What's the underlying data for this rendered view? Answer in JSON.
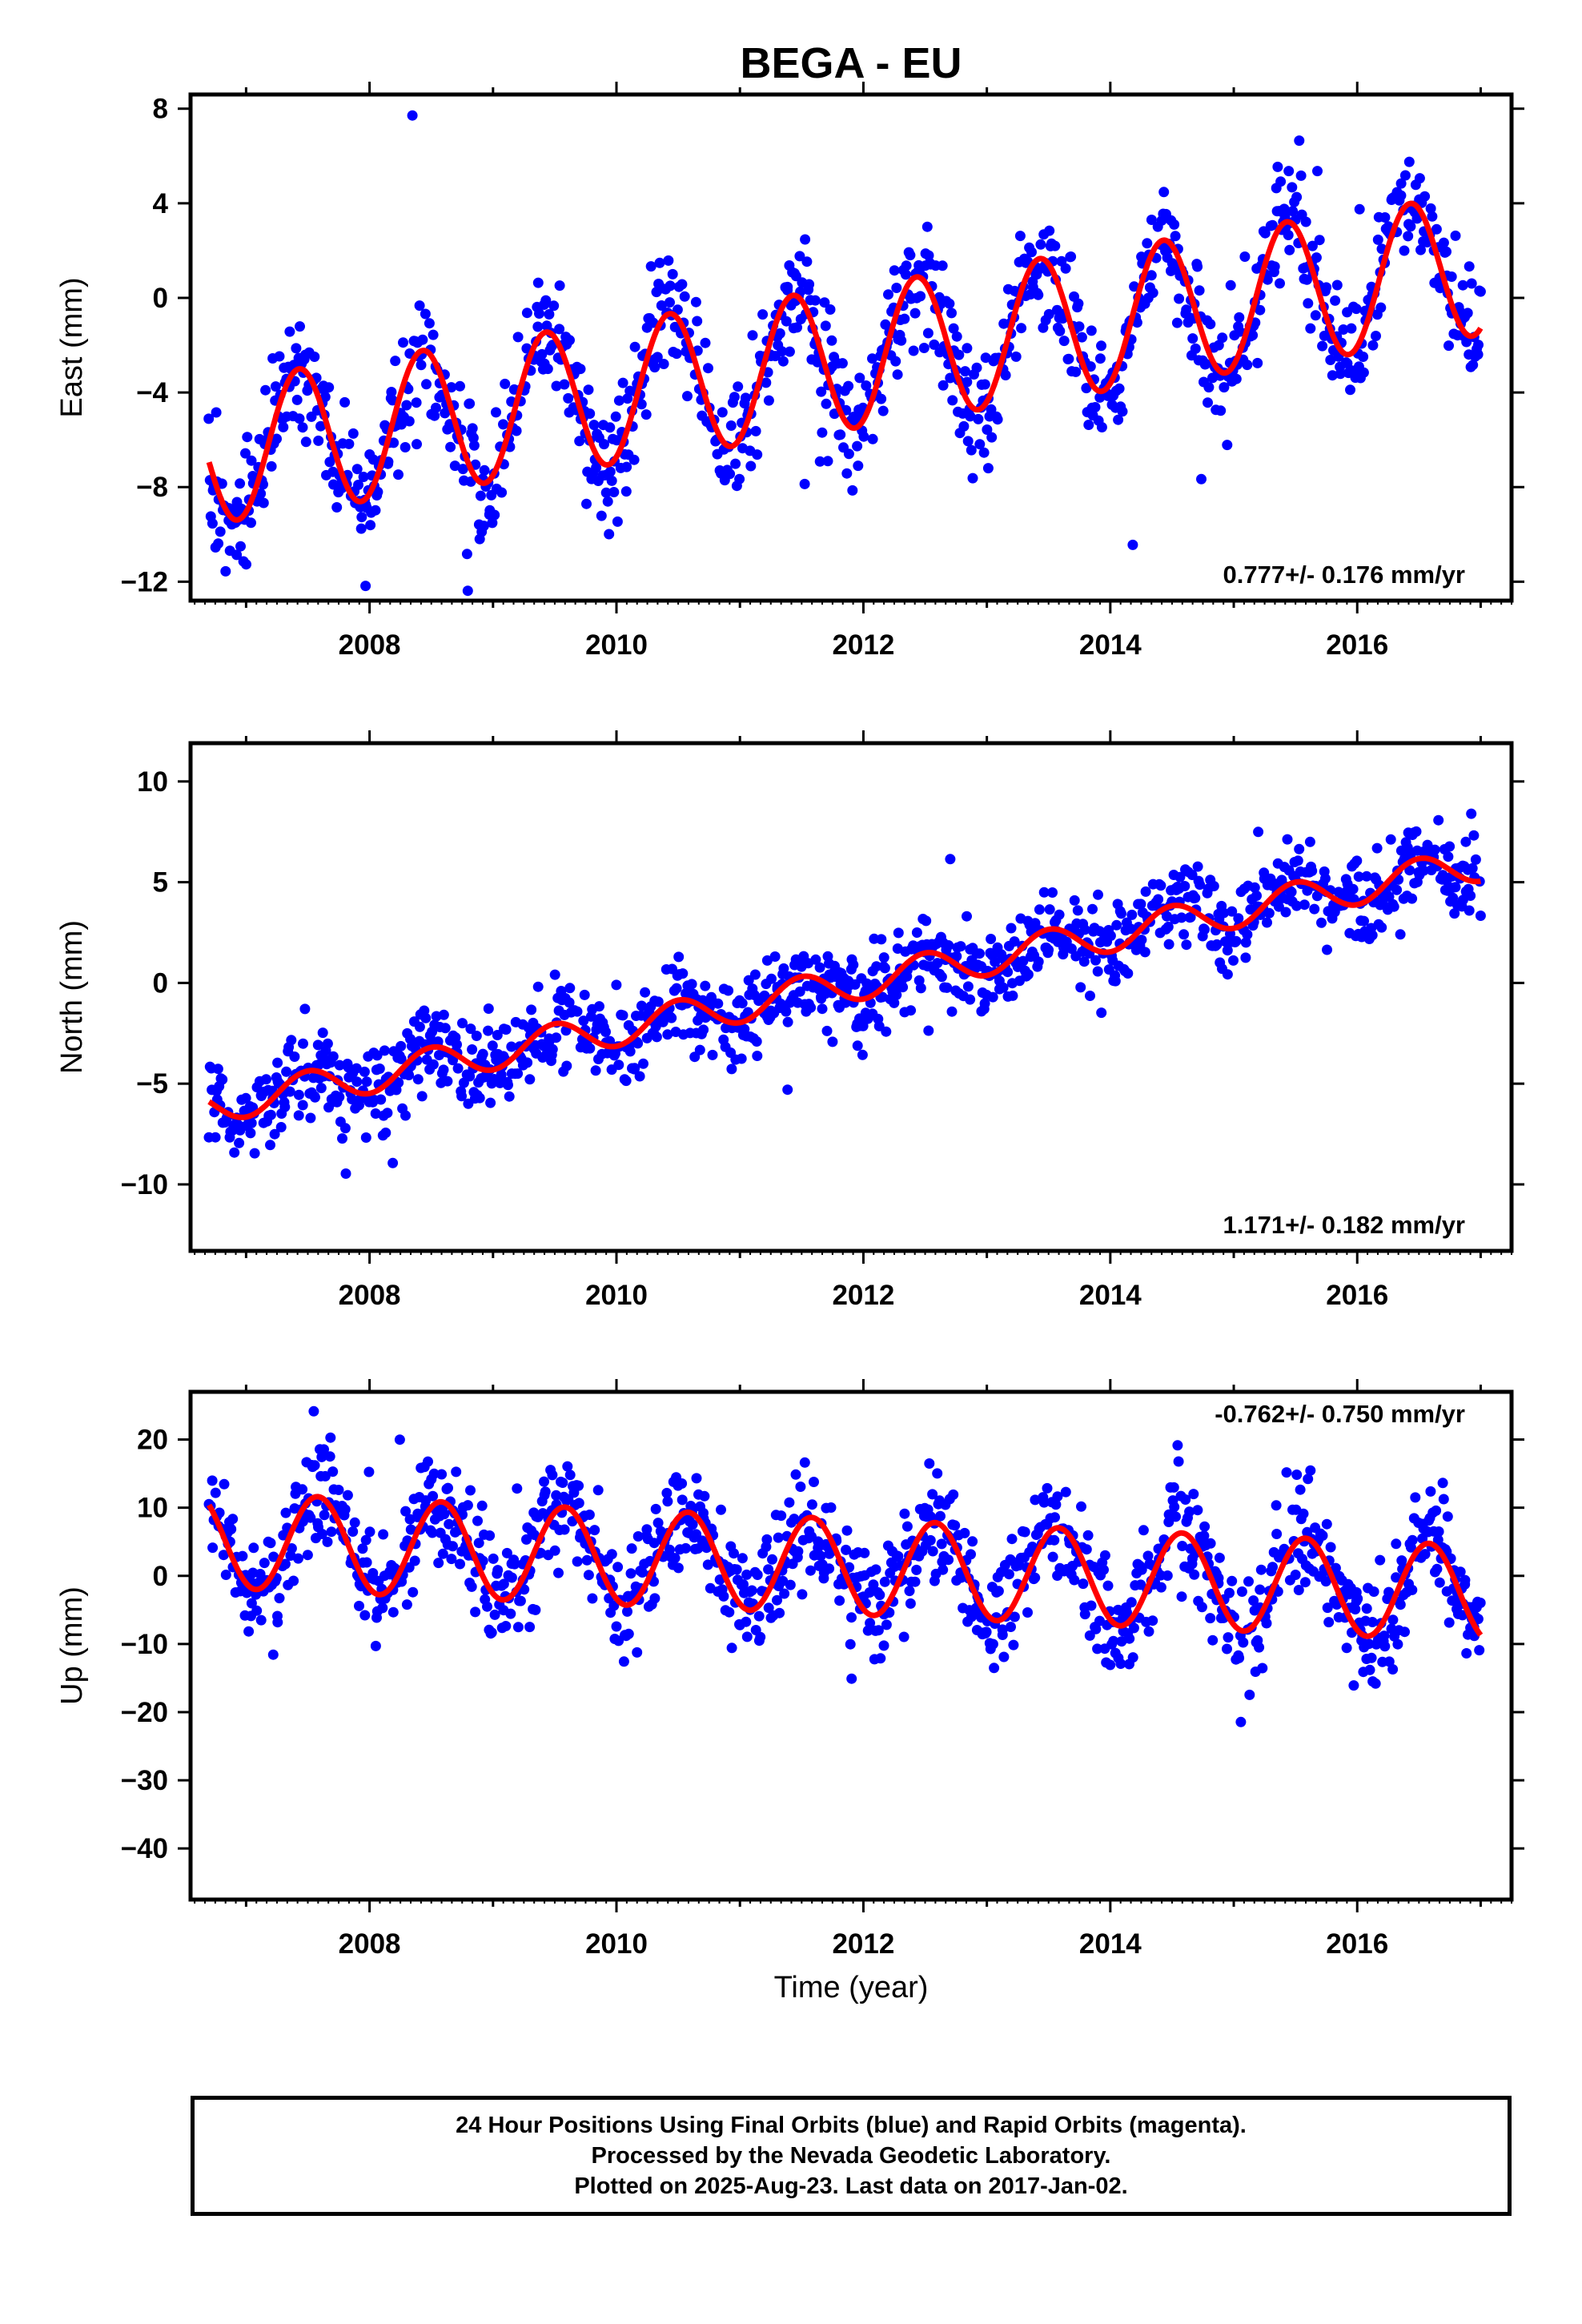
{
  "title": "BEGA - EU",
  "colors": {
    "data": "#0000ff",
    "model": "#ff0000",
    "axis": "#000000"
  },
  "chart_data": [
    {
      "type": "scatter",
      "panel": "east",
      "ylabel": "East (mm)",
      "xlim": [
        2006.55,
        2017.25
      ],
      "ylim": [
        -12.8,
        8.6
      ],
      "yticks": [
        8,
        4,
        0,
        -4,
        -8,
        -12
      ],
      "xticks": [
        2008,
        2010,
        2012,
        2014,
        2016
      ],
      "rate_label": "0.777+/- 0.176 mm/yr",
      "rate_position": "bottom-right",
      "trend": {
        "rate": 0.777,
        "offset": -2.45,
        "t_ref": 2012.0
      },
      "seasonal": {
        "amplitude": 3.0,
        "peak_phase": 0.43
      },
      "data_range": [
        2006.7,
        2017.0
      ],
      "model_range": [
        2006.7,
        2017.0
      ],
      "noise_sd": 1.25,
      "series": [
        {
          "name": "24 Hour Positions",
          "kind": "points"
        },
        {
          "name": "Model fit",
          "kind": "line"
        }
      ]
    },
    {
      "type": "scatter",
      "panel": "north",
      "ylabel": "North (mm)",
      "xlim": [
        2006.55,
        2017.25
      ],
      "ylim": [
        -13.3,
        11.9
      ],
      "yticks": [
        10,
        5,
        0,
        -5,
        -10
      ],
      "xticks": [
        2008,
        2010,
        2012,
        2014,
        2016
      ],
      "rate_label": "1.171+/- 0.182 mm/yr",
      "rate_position": "bottom-right",
      "trend": {
        "rate": 1.171,
        "offset": 0.05,
        "t_ref": 2012.0
      },
      "seasonal": {
        "amplitude": 0.85,
        "peak_phase": 0.5
      },
      "data_range": [
        2006.7,
        2017.0
      ],
      "model_range": [
        2006.7,
        2017.0
      ],
      "noise_sd": 1.05,
      "series": [
        {
          "name": "24 Hour Positions",
          "kind": "points"
        },
        {
          "name": "Model fit",
          "kind": "line"
        }
      ]
    },
    {
      "type": "scatter",
      "panel": "up",
      "ylabel": "Up (mm)",
      "xlim": [
        2006.55,
        2017.25
      ],
      "ylim": [
        -47.5,
        27.0
      ],
      "yticks": [
        20,
        10,
        0,
        -10,
        -20,
        -30,
        -40
      ],
      "xticks": [
        2008,
        2010,
        2012,
        2014,
        2016
      ],
      "xlabel": "Time (year)",
      "rate_label": "-0.762+/- 0.750 mm/yr",
      "rate_position": "top-right",
      "trend": {
        "rate": -0.762,
        "offset": 1.25,
        "t_ref": 2012.0
      },
      "seasonal": {
        "amplitude": 7.0,
        "peak_phase": 0.58
      },
      "data_range": [
        2006.7,
        2017.0
      ],
      "model_range": [
        2006.7,
        2017.0
      ],
      "noise_sd": 4.3,
      "series": [
        {
          "name": "24 Hour Positions",
          "kind": "points"
        },
        {
          "name": "Model fit",
          "kind": "line"
        }
      ]
    }
  ],
  "footer": {
    "line1": "24 Hour Positions Using Final Orbits (blue) and Rapid Orbits (magenta).",
    "line2": "Processed by the Nevada Geodetic Laboratory.",
    "line3": "Plotted on 2025-Aug-23. Last data on 2017-Jan-02."
  }
}
